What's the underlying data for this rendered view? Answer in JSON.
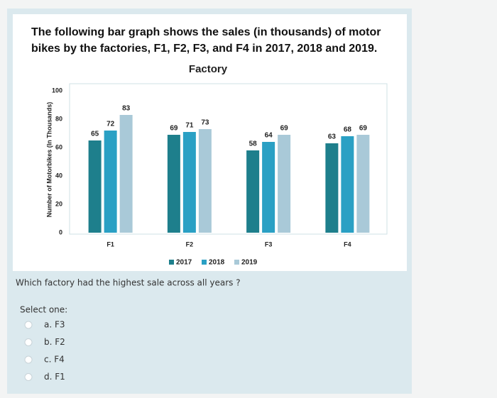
{
  "question": {
    "intro": "The following bar graph shows the sales (in thousands) of motor bikes by the factories, F1, F2, F3, and F4 in 2017, 2018 and 2019.",
    "prompt": "Which factory had the highest sale across all years ?",
    "select_label": "Select one:",
    "options": [
      "a. F3",
      "b. F2",
      "c. F4",
      "d. F1"
    ]
  },
  "chart_data": {
    "type": "bar",
    "title": "Factory",
    "y_label": "Number of Motorbikes (In Thousands)",
    "categories": [
      "F1",
      "F2",
      "F3",
      "F4"
    ],
    "series": [
      {
        "name": "2017",
        "color": "#1e7f8c",
        "values": [
          65,
          69,
          58,
          63
        ]
      },
      {
        "name": "2018",
        "color": "#2aa0c4",
        "values": [
          72,
          71,
          64,
          68
        ]
      },
      {
        "name": "2019",
        "color": "#a9c9d8",
        "values": [
          83,
          73,
          69,
          69
        ]
      }
    ],
    "ylim": [
      0,
      100
    ],
    "yticks": [
      0,
      20,
      40,
      60,
      80,
      100
    ],
    "grid": false,
    "legend": "bottom"
  }
}
